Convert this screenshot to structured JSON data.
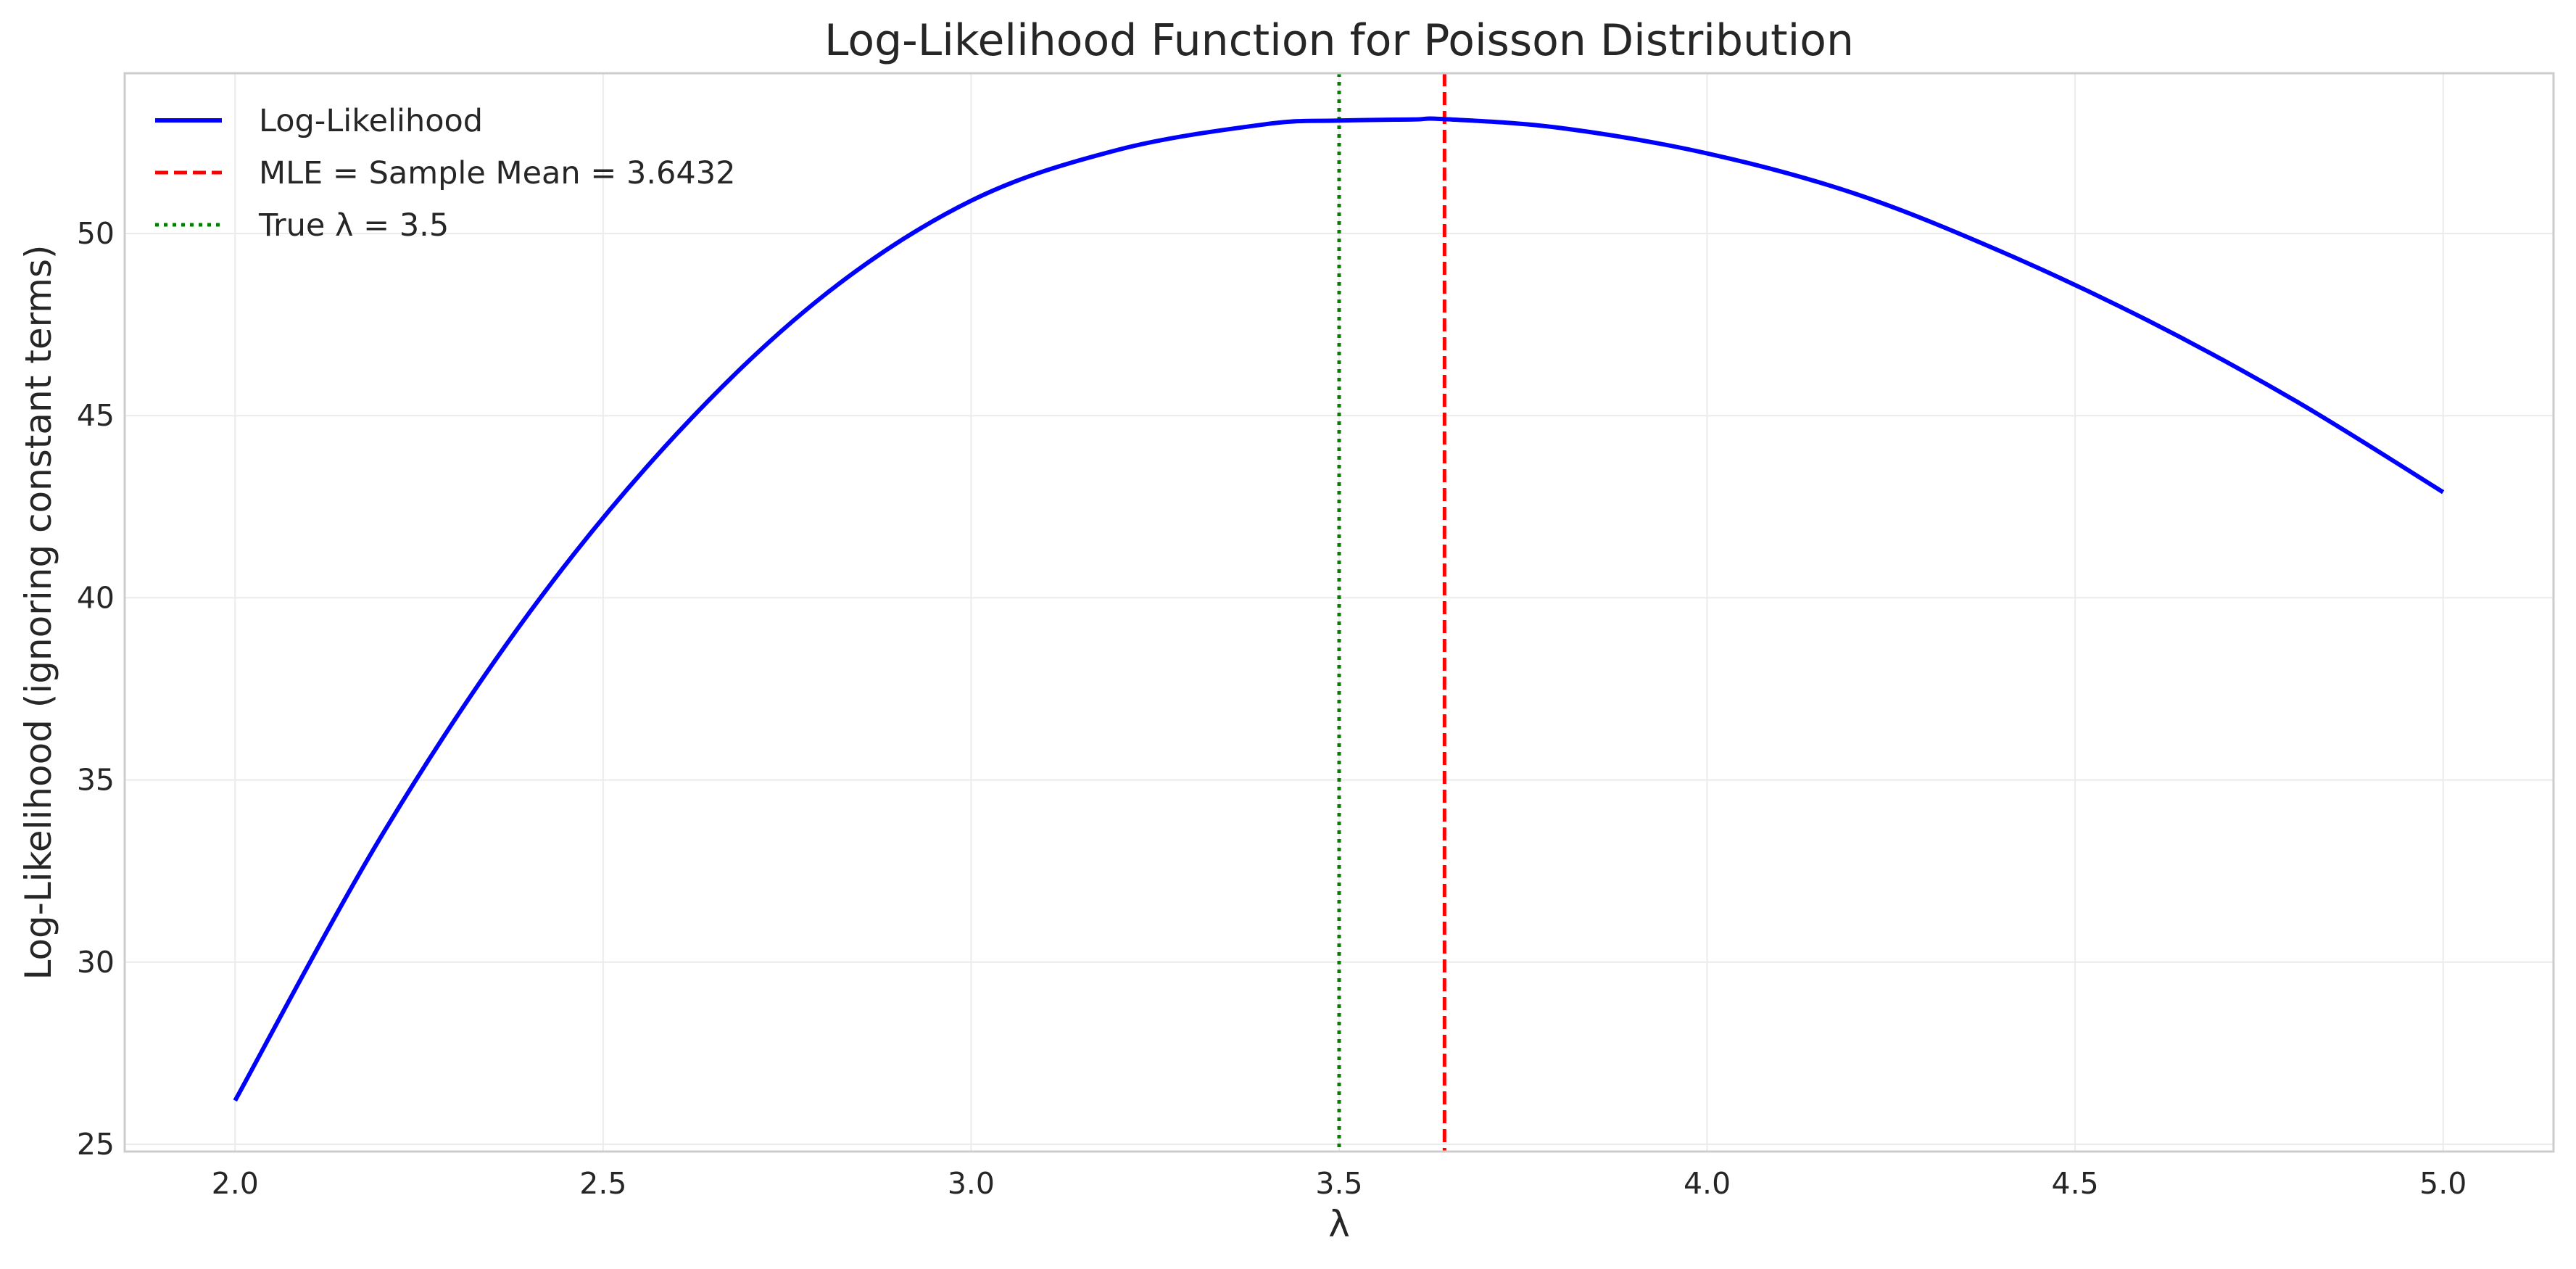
{
  "chart_data": {
    "type": "line",
    "title": "Log-Likelihood Function for Poisson Distribution",
    "xlabel": "λ",
    "ylabel": "Log-Likelihood (ignoring constant terms)",
    "xlim": [
      1.85,
      5.15
    ],
    "ylim": [
      24.8,
      54.4
    ],
    "xticks": [
      "2.0",
      "2.5",
      "3.0",
      "3.5",
      "4.0",
      "4.5",
      "5.0"
    ],
    "yticks": [
      "25",
      "30",
      "35",
      "40",
      "45",
      "50"
    ],
    "grid": true,
    "legend_position": "top-left",
    "series": [
      {
        "name": "Log-Likelihood",
        "color": "#0000ff",
        "style": "solid",
        "x": [
          2.0,
          2.2,
          2.4,
          2.6,
          2.8,
          3.0,
          3.2,
          3.4,
          3.5,
          3.6,
          3.6432,
          3.8,
          4.0,
          4.2,
          4.4,
          4.6,
          4.8,
          5.0
        ],
        "y": [
          26.2,
          33.5,
          39.6,
          44.5,
          48.3,
          50.9,
          52.3,
          53.0,
          53.1,
          53.13,
          53.14,
          52.9,
          52.2,
          51.1,
          49.5,
          47.6,
          45.4,
          42.9
        ]
      }
    ],
    "reference_lines": [
      {
        "name": "MLE = Sample Mean = 3.6432",
        "x": 3.6432,
        "color": "#ff0000",
        "style": "dashed"
      },
      {
        "name": "True λ = 3.5",
        "x": 3.5,
        "color": "#008000",
        "style": "dotted"
      }
    ]
  }
}
